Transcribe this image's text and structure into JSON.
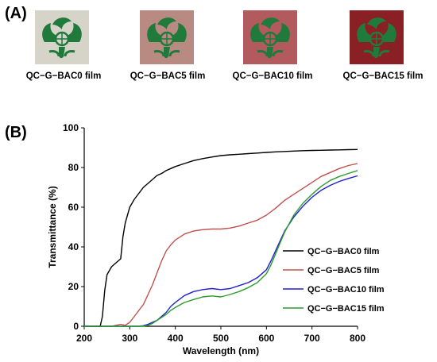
{
  "panel_labels": {
    "a": "(A)",
    "b": "(B)"
  },
  "films": [
    {
      "caption": "QC−G−BAC0 film",
      "background": "#d6d3c8"
    },
    {
      "caption": "QC−G−BAC5 film",
      "background": "#b98a82"
    },
    {
      "caption": "QC−G−BAC10 film",
      "background": "#b25a5e"
    },
    {
      "caption": "QC−G−BAC15 film",
      "background": "#8b1f26"
    }
  ],
  "emblem_color": "#1f7a3c",
  "chart_data": {
    "type": "line",
    "xlabel": "Wavelength (nm)",
    "ylabel": "Transmittance (%)",
    "xlim": [
      200,
      800
    ],
    "ylim": [
      0,
      100
    ],
    "xticks": [
      200,
      300,
      400,
      500,
      600,
      700,
      800
    ],
    "yticks": [
      0,
      20,
      40,
      60,
      80,
      100
    ],
    "grid": false,
    "legend_position": "right-middle",
    "series": [
      {
        "name": "QC−G−BAC0 film",
        "color": "#000000",
        "x": [
          200,
          235,
          240,
          245,
          250,
          260,
          270,
          280,
          285,
          290,
          300,
          310,
          320,
          330,
          340,
          350,
          360,
          370,
          380,
          390,
          400,
          420,
          440,
          460,
          480,
          500,
          520,
          540,
          560,
          580,
          600,
          620,
          640,
          660,
          680,
          700,
          720,
          740,
          760,
          780,
          800
        ],
        "y": [
          0,
          0,
          5,
          18,
          26,
          30,
          32,
          34,
          45,
          52,
          60,
          64,
          67,
          70,
          72,
          74,
          76,
          77,
          78.5,
          79.5,
          80.5,
          82,
          83.5,
          84.5,
          85.3,
          86,
          86.4,
          86.7,
          87,
          87.3,
          87.6,
          87.9,
          88.1,
          88.3,
          88.5,
          88.6,
          88.7,
          88.8,
          88.9,
          89,
          89.1
        ]
      },
      {
        "name": "QC−G−BAC5 film",
        "color": "#c0504d",
        "x": [
          200,
          260,
          270,
          280,
          290,
          300,
          310,
          320,
          330,
          340,
          350,
          360,
          370,
          380,
          390,
          400,
          420,
          440,
          460,
          480,
          500,
          520,
          540,
          560,
          580,
          600,
          620,
          640,
          660,
          680,
          700,
          720,
          740,
          760,
          780,
          800
        ],
        "y": [
          0,
          0,
          0.5,
          1,
          0.5,
          2,
          5,
          8,
          11,
          16,
          21,
          27,
          33,
          38,
          41,
          43.5,
          46.5,
          48,
          48.7,
          49,
          49,
          49.5,
          50.5,
          52,
          53.5,
          56,
          59.5,
          63.5,
          66.5,
          69.5,
          72.5,
          75.5,
          77.5,
          79.5,
          81,
          82
        ]
      },
      {
        "name": "QC−G−BAC10 film",
        "color": "#1f1fd0",
        "x": [
          200,
          320,
          330,
          340,
          350,
          360,
          370,
          380,
          390,
          400,
          420,
          440,
          460,
          480,
          500,
          520,
          540,
          560,
          580,
          600,
          610,
          620,
          630,
          640,
          660,
          680,
          700,
          720,
          740,
          760,
          780,
          800
        ],
        "y": [
          0,
          0,
          0.3,
          1,
          2,
          3,
          5,
          7,
          10,
          12,
          15.5,
          17.5,
          18.5,
          19,
          18.5,
          19,
          20.5,
          22,
          24.5,
          28.5,
          33,
          38,
          43,
          48,
          55,
          60.5,
          65,
          68.5,
          71,
          73,
          74.5,
          75.8
        ]
      },
      {
        "name": "QC−G−BAC15 film",
        "color": "#2a9d2a",
        "x": [
          200,
          330,
          340,
          350,
          360,
          370,
          380,
          390,
          400,
          420,
          440,
          460,
          480,
          500,
          520,
          540,
          560,
          580,
          600,
          610,
          620,
          630,
          640,
          660,
          680,
          700,
          720,
          740,
          760,
          780,
          800
        ],
        "y": [
          0,
          0,
          0.5,
          1.5,
          3,
          4.5,
          6,
          8,
          9.5,
          12,
          13.5,
          14.8,
          15.3,
          14.8,
          16,
          17.5,
          19.5,
          22,
          26.5,
          31,
          36.5,
          42,
          47.5,
          56,
          62,
          66.5,
          70.5,
          73.5,
          75.5,
          77,
          78.5
        ]
      }
    ]
  }
}
